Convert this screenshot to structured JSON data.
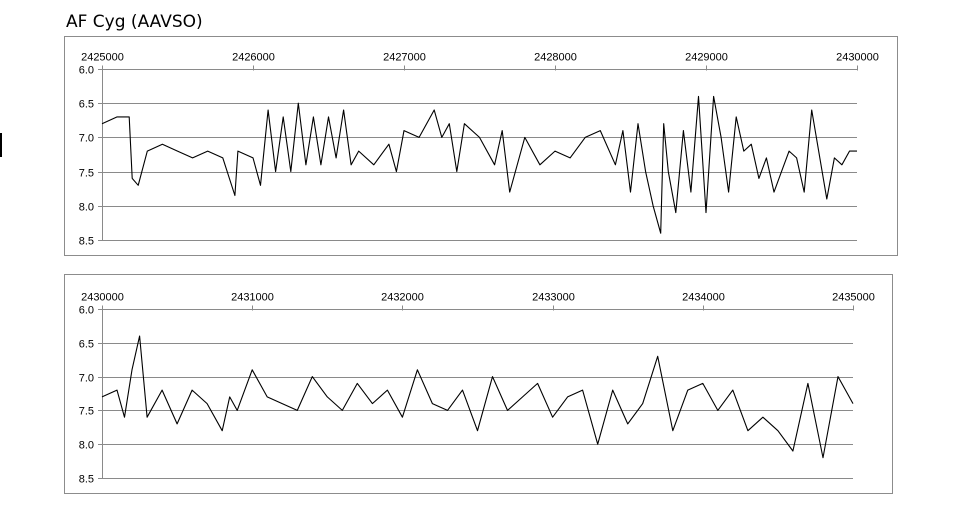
{
  "chart_data": [
    {
      "type": "line",
      "title": "AF Cyg (AAVSO)",
      "xlabel": "",
      "ylabel": "",
      "x_axis_position": "top",
      "y_inverted": true,
      "grid": true,
      "legend": "none",
      "xlim": [
        2425000,
        2430000
      ],
      "ylim": [
        6.0,
        8.5
      ],
      "x_ticks": [
        "2425000",
        "2426000",
        "2427000",
        "2428000",
        "2429000",
        "2430000"
      ],
      "y_ticks": [
        "6.0",
        "6.5",
        "7.0",
        "7.5",
        "8.0",
        "8.5"
      ],
      "series": [
        {
          "color": "#000000",
          "x": [
            2425000,
            2425100,
            2425180,
            2425200,
            2425240,
            2425300,
            2425400,
            2425500,
            2425600,
            2425700,
            2425800,
            2425880,
            2425900,
            2426000,
            2426050,
            2426100,
            2426150,
            2426200,
            2426250,
            2426300,
            2426350,
            2426400,
            2426450,
            2426500,
            2426550,
            2426600,
            2426650,
            2426700,
            2426800,
            2426900,
            2426950,
            2427000,
            2427100,
            2427200,
            2427250,
            2427300,
            2427350,
            2427400,
            2427500,
            2427600,
            2427650,
            2427700,
            2427800,
            2427900,
            2428000,
            2428100,
            2428200,
            2428300,
            2428400,
            2428450,
            2428500,
            2428550,
            2428600,
            2428650,
            2428700,
            2428720,
            2428750,
            2428800,
            2428850,
            2428900,
            2428950,
            2429000,
            2429050,
            2429100,
            2429150,
            2429200,
            2429250,
            2429300,
            2429350,
            2429400,
            2429450,
            2429500,
            2429550,
            2429600,
            2429650,
            2429700,
            2429800,
            2429850,
            2429900,
            2429950,
            2430000
          ],
          "y": [
            6.8,
            6.7,
            6.7,
            7.6,
            7.7,
            7.2,
            7.1,
            7.2,
            7.3,
            7.2,
            7.3,
            7.85,
            7.2,
            7.3,
            7.7,
            6.6,
            7.5,
            6.7,
            7.5,
            6.5,
            7.4,
            6.7,
            7.4,
            6.7,
            7.3,
            6.6,
            7.4,
            7.2,
            7.4,
            7.1,
            7.5,
            6.9,
            7.0,
            6.6,
            7.0,
            6.8,
            7.5,
            6.8,
            7.0,
            7.4,
            6.9,
            7.8,
            7.0,
            7.4,
            7.2,
            7.3,
            7.0,
            6.9,
            7.4,
            6.9,
            7.8,
            6.8,
            7.5,
            8.0,
            8.4,
            6.8,
            7.5,
            8.1,
            6.9,
            7.8,
            6.4,
            8.1,
            6.4,
            7.0,
            7.8,
            6.7,
            7.2,
            7.1,
            7.6,
            7.3,
            7.8,
            7.5,
            7.2,
            7.3,
            7.8,
            6.6,
            7.9,
            7.3,
            7.4,
            7.2,
            7.2
          ]
        }
      ]
    },
    {
      "type": "line",
      "title": "",
      "xlabel": "",
      "ylabel": "",
      "x_axis_position": "top",
      "y_inverted": true,
      "grid": true,
      "legend": "none",
      "xlim": [
        2430000,
        2435000
      ],
      "ylim": [
        6.0,
        8.5
      ],
      "x_ticks": [
        "2430000",
        "2431000",
        "2432000",
        "2433000",
        "2434000",
        "2435000"
      ],
      "y_ticks": [
        "6.0",
        "6.5",
        "7.0",
        "7.5",
        "8.0",
        "8.5"
      ],
      "series": [
        {
          "color": "#000000",
          "x": [
            2430000,
            2430100,
            2430150,
            2430200,
            2430250,
            2430300,
            2430400,
            2430500,
            2430600,
            2430700,
            2430800,
            2430850,
            2430900,
            2431000,
            2431100,
            2431200,
            2431300,
            2431400,
            2431500,
            2431600,
            2431700,
            2431800,
            2431900,
            2432000,
            2432100,
            2432200,
            2432300,
            2432400,
            2432500,
            2432600,
            2432700,
            2432800,
            2432900,
            2433000,
            2433100,
            2433200,
            2433300,
            2433400,
            2433500,
            2433600,
            2433700,
            2433800,
            2433900,
            2434000,
            2434100,
            2434200,
            2434300,
            2434400,
            2434500,
            2434600,
            2434700,
            2434800,
            2434900,
            2435000
          ],
          "y": [
            7.3,
            7.2,
            7.6,
            6.9,
            6.4,
            7.6,
            7.2,
            7.7,
            7.2,
            7.4,
            7.8,
            7.3,
            7.5,
            6.9,
            7.3,
            7.4,
            7.5,
            7.0,
            7.3,
            7.5,
            7.1,
            7.4,
            7.2,
            7.6,
            6.9,
            7.4,
            7.5,
            7.2,
            7.8,
            7.0,
            7.5,
            7.3,
            7.1,
            7.6,
            7.3,
            7.2,
            8.0,
            7.2,
            7.7,
            7.4,
            6.7,
            7.8,
            7.2,
            7.1,
            7.5,
            7.2,
            7.8,
            7.6,
            7.8,
            8.1,
            7.1,
            8.2,
            7.0,
            7.4
          ]
        }
      ]
    }
  ]
}
